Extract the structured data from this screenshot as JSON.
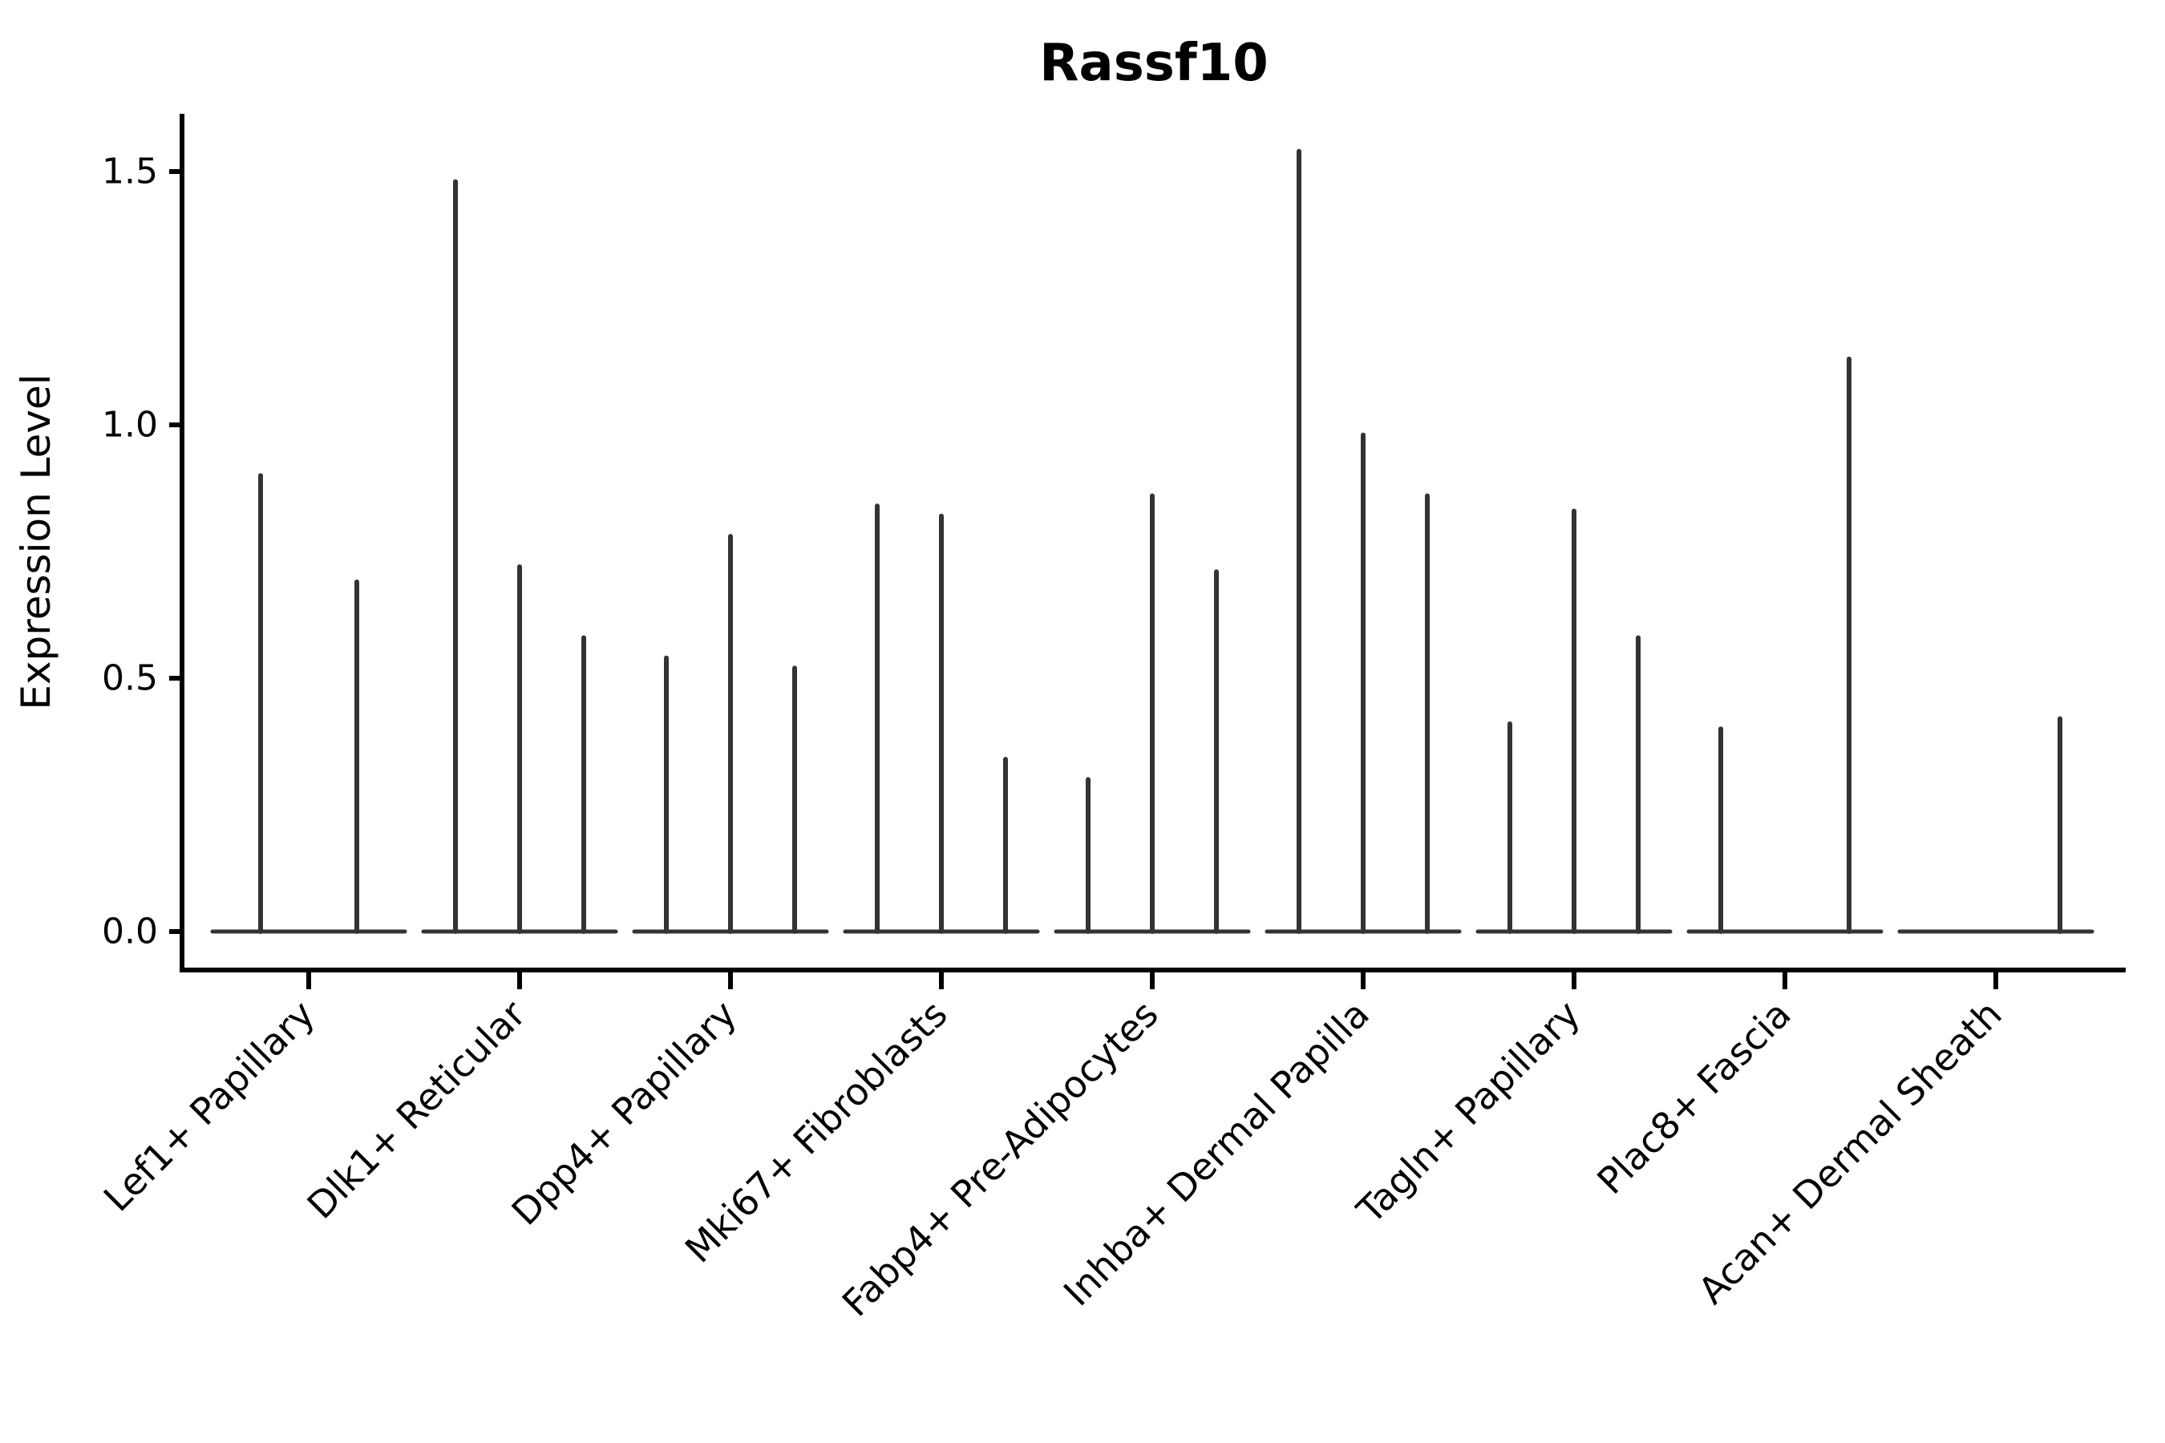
{
  "figure": {
    "title": "Rassf10"
  },
  "chart_data": {
    "type": "violin",
    "title": "Rassf10",
    "xlabel": "",
    "ylabel": "Expression Level",
    "ylim": [
      -0.08,
      1.62
    ],
    "yticks": [
      0.0,
      0.5,
      1.0,
      1.5
    ],
    "ytick_labels": [
      "0.0",
      "0.5",
      "1.0",
      "1.5"
    ],
    "grid": false,
    "legend": null,
    "categories": [
      "Lef1+ Papillary",
      "Dlk1+ Reticular",
      "Dpp4+ Papillary",
      "Mki67+ Fibroblasts",
      "Fabp4+ Pre-Adipocytes",
      "Inhba+ Dermal Papilla",
      "Tagln+ Papillary",
      "Plac8+ Fascia",
      "Acan+ Dermal Sheath"
    ],
    "groups": [
      {
        "category": "Lef1+ Papillary",
        "violin_maxes": [
          0.9,
          0.69
        ]
      },
      {
        "category": "Dlk1+ Reticular",
        "violin_maxes": [
          1.48,
          0.72,
          0.58
        ]
      },
      {
        "category": "Dpp4+ Papillary",
        "violin_maxes": [
          0.54,
          0.78,
          0.52
        ]
      },
      {
        "category": "Mki67+ Fibroblasts",
        "violin_maxes": [
          0.84,
          0.82,
          0.34
        ]
      },
      {
        "category": "Fabp4+ Pre-Adipocytes",
        "violin_maxes": [
          0.3,
          0.86,
          0.71
        ]
      },
      {
        "category": "Inhba+ Dermal Papilla",
        "violin_maxes": [
          1.54,
          0.98,
          0.86
        ]
      },
      {
        "category": "Tagln+ Papillary",
        "violin_maxes": [
          0.41,
          0.83,
          0.58
        ]
      },
      {
        "category": "Plac8+ Fascia",
        "violin_maxes": [
          0.4,
          0.0,
          1.13
        ]
      },
      {
        "category": "Acan+ Dermal Sheath",
        "violin_maxes": [
          0.0,
          0.0,
          0.42
        ]
      }
    ],
    "colors": {
      "violin": "#333333",
      "axis": "#000000",
      "text": "#000000",
      "background": "#ffffff"
    }
  }
}
